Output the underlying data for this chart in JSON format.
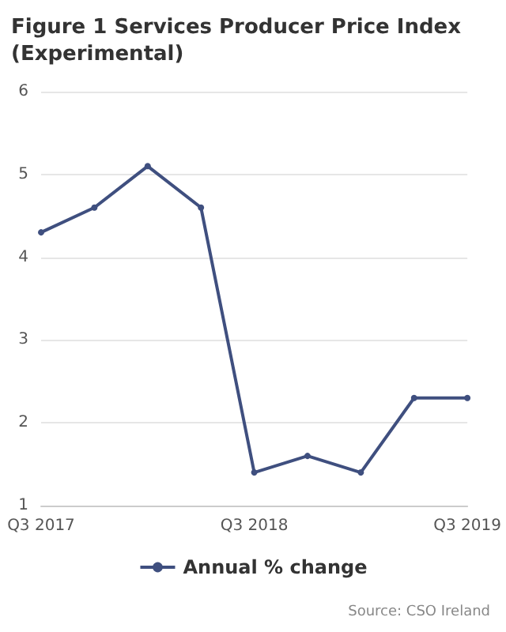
{
  "chart_data": {
    "type": "line",
    "title": "Figure 1 Services Producer Price Index\n(Experimental)",
    "categories": [
      "Q3 2017",
      null,
      null,
      null,
      "Q3 2018",
      null,
      null,
      null,
      "Q3 2019"
    ],
    "series": [
      {
        "name": "Annual % change",
        "color": "#3f4f7f",
        "values": [
          4.3,
          4.6,
          5.1,
          4.6,
          1.4,
          1.6,
          1.4,
          2.3,
          2.3
        ]
      }
    ],
    "ylim": [
      1,
      6
    ],
    "yticks": [
      1,
      2,
      3,
      4,
      5,
      6
    ],
    "grid": "y",
    "legend": "bottom",
    "marker": "circle",
    "line_style": "solid",
    "annotations": [
      "Source: CSO Ireland"
    ]
  }
}
